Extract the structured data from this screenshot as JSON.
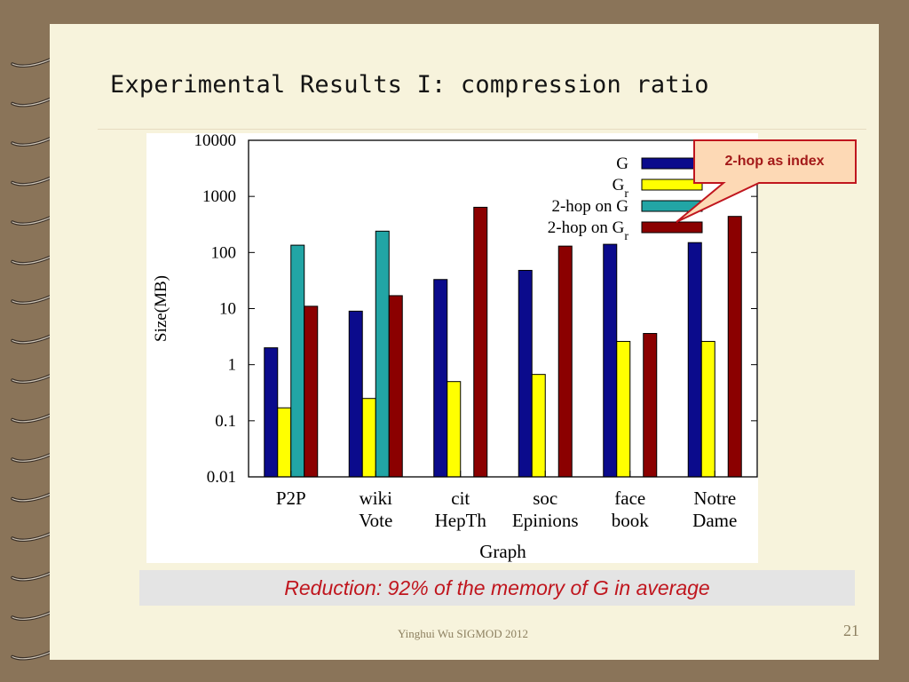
{
  "slide": {
    "title": "Experimental Results I: compression ratio",
    "callout": "2-hop as index",
    "summary": "Reduction:  92% of the memory of G in average",
    "footer": "Yinghui Wu SIGMOD 2012",
    "page_number": "21"
  },
  "colors": {
    "background": "#8a7459",
    "page": "#f7f3dc",
    "accent_red": "#c0161e"
  },
  "chart_data": {
    "type": "bar",
    "xlabel": "Graph",
    "ylabel": "Size(MB)",
    "yscale": "log",
    "ylim": [
      0.01,
      10000
    ],
    "yticks": [
      {
        "value": 10000,
        "label": "10000"
      },
      {
        "value": 1000,
        "label": "1000"
      },
      {
        "value": 100,
        "label": "100"
      },
      {
        "value": 10,
        "label": "10"
      },
      {
        "value": 1,
        "label": "1"
      },
      {
        "value": 0.1,
        "label": "0.1"
      },
      {
        "value": 0.01,
        "label": "0.01"
      }
    ],
    "categories": [
      [
        "P2P"
      ],
      [
        "wiki",
        "Vote"
      ],
      [
        "cit",
        "HepTh"
      ],
      [
        "soc",
        "Epinions"
      ],
      [
        "face",
        "book"
      ],
      [
        "Notre",
        "Dame"
      ]
    ],
    "grid": false,
    "legend": "top-right",
    "series": [
      {
        "name": "G",
        "name_sub": "",
        "color": "#0b0b8c",
        "values": [
          2.0,
          9.0,
          33,
          48,
          140,
          150
        ]
      },
      {
        "name": "G",
        "name_sub": "r",
        "color": "#ffff00",
        "values": [
          0.17,
          0.25,
          0.5,
          0.67,
          2.6,
          2.6
        ]
      },
      {
        "name": "2-hop on G",
        "name_sub": "",
        "color": "#22a5a5",
        "values": [
          135,
          240,
          null,
          null,
          null,
          null
        ]
      },
      {
        "name": "2-hop on G",
        "name_sub": "r",
        "color": "#8b0000",
        "values": [
          11,
          17,
          640,
          130,
          3.6,
          440
        ]
      }
    ]
  }
}
